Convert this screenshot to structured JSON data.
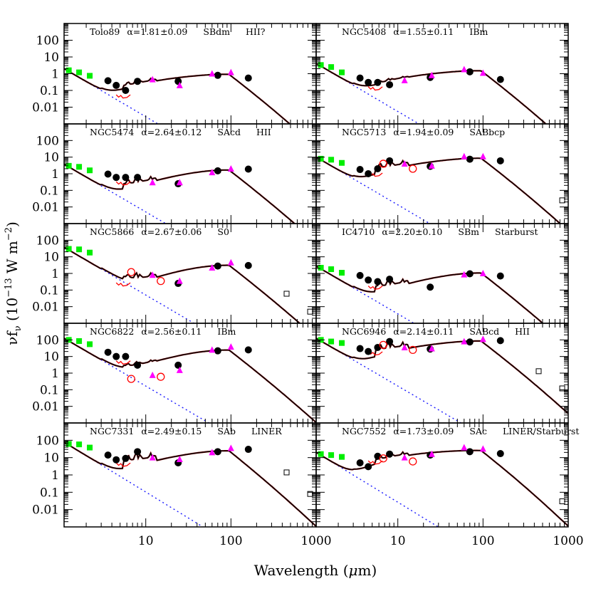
{
  "figure": {
    "xlabel": "Wavelength (μm)",
    "ylabel": "νf_ν (10^-13 W m^-2)",
    "ylabel_parts": {
      "nu": "ν",
      "f": "f",
      "sub": "ν",
      "open": " (10",
      "exp": "−13",
      "unit": " W m",
      "exp2": "−2",
      "close": ")"
    },
    "xlabel_parts": {
      "pre": "Wavelength (",
      "mu": "μ",
      "post": "m)"
    },
    "x_tick_labels": [
      "10",
      "100",
      "1000"
    ],
    "y_tick_labels": [
      "100",
      "10",
      "1",
      "0.1",
      "0.01"
    ],
    "colors": {
      "model": "#000000",
      "photosphere": "#1a1aff",
      "irs_spectrum": "#ff0000",
      "twomass": "#00ee00",
      "iras": "#ff00ff",
      "spitzer": "#000000",
      "iso": "#ff0000",
      "submm": "#000000"
    }
  },
  "chart_data": {
    "type": "scatter",
    "title": "",
    "xlabel": "Wavelength (μm)",
    "ylabel": "νf_ν (10^-13 W m^-2)",
    "xscale": "log",
    "yscale": "log",
    "xlim": [
      1.1,
      1000
    ],
    "ylim": [
      0.001,
      1000
    ],
    "grid": false,
    "layout": "5 rows x 2 columns",
    "legend": "none; marker types: green squares (near-IR), black filled circles (Spitzer), magenta triangles (IRAS), red open circles (ISO), black open squares (submm); black solid line = model; blue dotted line = stellar photosphere; red line = IRS spectrum",
    "panels": [
      {
        "name": "Tolo89",
        "alpha": "α=1.81±0.09",
        "morph": "SBdm",
        "nuclear": "HII?",
        "near_ir": [
          [
            1.25,
            1.6
          ],
          [
            1.65,
            1.2
          ],
          [
            2.2,
            0.75
          ]
        ],
        "spitzer": [
          [
            3.6,
            0.38
          ],
          [
            4.5,
            0.2
          ],
          [
            5.8,
            0.1
          ],
          [
            8.0,
            0.35
          ],
          [
            24,
            0.35
          ],
          [
            70,
            0.8
          ],
          [
            160,
            0.55
          ]
        ],
        "iras": [
          [
            12,
            0.45
          ],
          [
            25,
            0.2
          ],
          [
            60,
            1.0
          ],
          [
            100,
            1.2
          ]
        ],
        "iso": [],
        "submm": []
      },
      {
        "name": "NGC5408",
        "alpha": "α=1.55±0.11",
        "morph": "IBm",
        "nuclear": "",
        "near_ir": [
          [
            1.25,
            3.3
          ],
          [
            1.65,
            2.5
          ],
          [
            2.2,
            1.2
          ]
        ],
        "spitzer": [
          [
            3.6,
            0.55
          ],
          [
            4.5,
            0.3
          ],
          [
            5.8,
            0.3
          ],
          [
            8.0,
            0.22
          ],
          [
            24,
            0.6
          ],
          [
            70,
            1.3
          ],
          [
            160,
            0.45
          ]
        ],
        "iras": [
          [
            12,
            0.4
          ],
          [
            25,
            0.8
          ],
          [
            60,
            1.8
          ],
          [
            100,
            1.1
          ]
        ],
        "iso": [],
        "submm": []
      },
      {
        "name": "NGC5474",
        "alpha": "α=2.64±0.12",
        "morph": "SAcd",
        "nuclear": "HII",
        "near_ir": [
          [
            1.25,
            3.0
          ],
          [
            1.65,
            2.6
          ],
          [
            2.2,
            1.6
          ]
        ],
        "spitzer": [
          [
            3.6,
            0.95
          ],
          [
            4.5,
            0.6
          ],
          [
            5.8,
            0.6
          ],
          [
            8.0,
            0.6
          ],
          [
            24,
            0.25
          ],
          [
            70,
            1.5
          ],
          [
            160,
            1.9
          ]
        ],
        "iras": [
          [
            12,
            0.3
          ],
          [
            25,
            0.3
          ],
          [
            60,
            1.2
          ],
          [
            100,
            2.0
          ]
        ],
        "iso": [],
        "submm": []
      },
      {
        "name": "NGC5713",
        "alpha": "α=1.94±0.09",
        "morph": "SABbcp",
        "nuclear": "",
        "near_ir": [
          [
            1.25,
            8.0
          ],
          [
            1.65,
            7.0
          ],
          [
            2.2,
            4.5
          ]
        ],
        "spitzer": [
          [
            3.6,
            1.8
          ],
          [
            4.5,
            1.0
          ],
          [
            5.8,
            2.0
          ],
          [
            8.0,
            6.0
          ],
          [
            24,
            2.8
          ],
          [
            70,
            7.5
          ],
          [
            160,
            6.0
          ]
        ],
        "iras": [
          [
            12,
            4.0
          ],
          [
            25,
            3.0
          ],
          [
            60,
            11.0
          ],
          [
            100,
            11.0
          ]
        ],
        "iso": [
          [
            6.75,
            4.0
          ],
          [
            15,
            2.0
          ]
        ],
        "submm": [
          [
            850,
            0.025
          ]
        ]
      },
      {
        "name": "NGC5866",
        "alpha": "α=2.67±0.06",
        "morph": "S0",
        "nuclear": "",
        "near_ir": [
          [
            1.25,
            30
          ],
          [
            1.65,
            28
          ],
          [
            2.2,
            18
          ]
        ],
        "spitzer": [
          [
            24,
            0.25
          ],
          [
            70,
            2.8
          ],
          [
            160,
            3.0
          ]
        ],
        "iras": [
          [
            12,
            0.8
          ],
          [
            25,
            0.35
          ],
          [
            60,
            2.2
          ],
          [
            100,
            4.5
          ]
        ],
        "iso": [
          [
            6.75,
            1.2
          ],
          [
            15,
            0.35
          ]
        ],
        "submm": [
          [
            450,
            0.06
          ],
          [
            850,
            0.005
          ]
        ]
      },
      {
        "name": "IC4710",
        "alpha": "α=2.20±0.10",
        "morph": "SBm",
        "nuclear": "Starburst",
        "near_ir": [
          [
            1.25,
            2.2
          ],
          [
            1.65,
            1.8
          ],
          [
            2.2,
            1.1
          ]
        ],
        "spitzer": [
          [
            3.6,
            0.75
          ],
          [
            4.5,
            0.4
          ],
          [
            5.8,
            0.32
          ],
          [
            8.0,
            0.45
          ],
          [
            24,
            0.15
          ],
          [
            70,
            0.95
          ],
          [
            160,
            0.7
          ]
        ],
        "iras": [
          [
            60,
            0.85
          ],
          [
            100,
            1.0
          ]
        ],
        "iso": [],
        "submm": []
      },
      {
        "name": "NGC6822",
        "alpha": "α=2.56±0.11",
        "morph": "IBm",
        "nuclear": "",
        "near_ir": [
          [
            1.25,
            100
          ],
          [
            1.65,
            85
          ],
          [
            2.2,
            55
          ]
        ],
        "spitzer": [
          [
            3.6,
            18
          ],
          [
            4.5,
            10
          ],
          [
            5.8,
            10
          ],
          [
            8.0,
            3.0
          ],
          [
            24,
            3.0
          ],
          [
            70,
            22
          ],
          [
            160,
            25
          ]
        ],
        "iras": [
          [
            12,
            0.75
          ],
          [
            25,
            1.5
          ],
          [
            60,
            25
          ],
          [
            100,
            38
          ]
        ],
        "iso": [
          [
            6.75,
            0.45
          ],
          [
            15,
            0.6
          ]
        ],
        "submm": []
      },
      {
        "name": "NGC6946",
        "alpha": "α=2.14±0.11",
        "morph": "SABcd",
        "nuclear": "HII",
        "near_ir": [
          [
            1.25,
            100
          ],
          [
            1.65,
            80
          ],
          [
            2.2,
            65
          ]
        ],
        "spitzer": [
          [
            3.6,
            30
          ],
          [
            4.5,
            20
          ],
          [
            5.8,
            35
          ],
          [
            8.0,
            80
          ],
          [
            24,
            28
          ],
          [
            70,
            75
          ],
          [
            160,
            90
          ]
        ],
        "iras": [
          [
            12,
            35
          ],
          [
            25,
            30
          ],
          [
            60,
            80
          ],
          [
            100,
            110
          ]
        ],
        "iso": [
          [
            6.75,
            50
          ],
          [
            15,
            25
          ]
        ],
        "submm": [
          [
            450,
            1.3
          ],
          [
            850,
            0.12
          ]
        ]
      },
      {
        "name": "NGC7331",
        "alpha": "α=2.49±0.15",
        "morph": "SAb",
        "nuclear": "LINER",
        "near_ir": [
          [
            1.25,
            62
          ],
          [
            1.65,
            58
          ],
          [
            2.2,
            38
          ]
        ],
        "spitzer": [
          [
            3.6,
            14
          ],
          [
            4.5,
            7.5
          ],
          [
            5.8,
            9
          ],
          [
            8.0,
            22
          ],
          [
            24,
            5.0
          ],
          [
            70,
            22
          ],
          [
            160,
            30
          ]
        ],
        "iras": [
          [
            12,
            10
          ],
          [
            25,
            8
          ],
          [
            60,
            20
          ],
          [
            100,
            35
          ]
        ],
        "iso": [],
        "submm": [
          [
            450,
            1.4
          ],
          [
            850,
            0.08
          ]
        ]
      },
      {
        "name": "NGC7552",
        "alpha": "α=1.73±0.09",
        "morph": "SAc",
        "nuclear": "LINER/Starburst",
        "near_ir": [
          [
            1.25,
            16
          ],
          [
            1.65,
            14
          ],
          [
            2.2,
            11
          ]
        ],
        "spitzer": [
          [
            3.6,
            5.0
          ],
          [
            4.5,
            3.0
          ],
          [
            5.8,
            12
          ],
          [
            8.0,
            16
          ],
          [
            24,
            14
          ],
          [
            70,
            22
          ],
          [
            160,
            17
          ]
        ],
        "iras": [
          [
            12,
            10
          ],
          [
            25,
            16
          ],
          [
            60,
            38
          ],
          [
            100,
            32
          ]
        ],
        "iso": [
          [
            6.75,
            9
          ],
          [
            15,
            6
          ]
        ],
        "submm": [
          [
            850,
            0.03
          ]
        ]
      }
    ]
  }
}
